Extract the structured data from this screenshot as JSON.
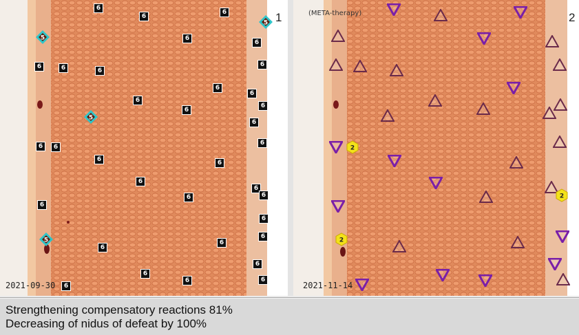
{
  "left_panel": {
    "number": "1",
    "date": "2021-09-30",
    "marker_label": "6",
    "special_marker_label": "5",
    "marker_color": "#111111",
    "special_marker_color": "#2ec5c9"
  },
  "right_panel": {
    "number": "2",
    "date": "2021-11-14",
    "title": "(META-therapy)",
    "hex_label": "2",
    "triangle_up_color": "#6a2a4a",
    "triangle_down_color": "#7a1fa8",
    "hex_color": "#f3e21a"
  },
  "status": {
    "line1": "Strengthening compensatory reactions 81%",
    "line2": "Decreasing of nidus of defeat by 100%"
  }
}
